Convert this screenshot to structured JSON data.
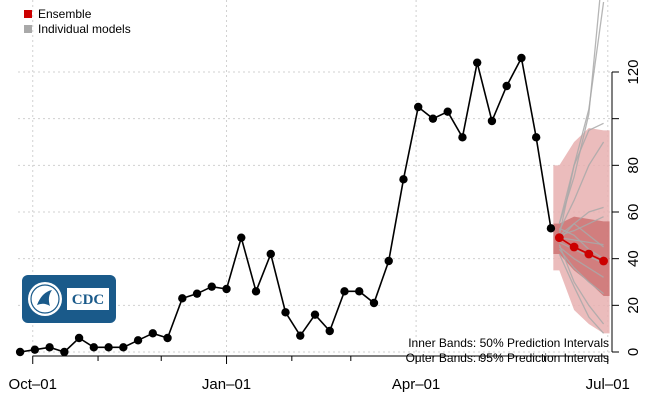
{
  "chart_data": {
    "type": "line",
    "title": "",
    "xlabel": "",
    "ylabel": "",
    "ylim": [
      0,
      135
    ],
    "xlim": [
      "2021-09-24",
      "2022-07-03"
    ],
    "x_ticks": [
      {
        "date": "2021-10-01",
        "label": "Oct–01"
      },
      {
        "date": "2022-01-01",
        "label": "Jan–01"
      },
      {
        "date": "2022-04-01",
        "label": "Apr–01"
      },
      {
        "date": "2022-07-01",
        "label": "Jul–01"
      }
    ],
    "y_ticks": [
      0,
      20,
      40,
      60,
      80,
      120
    ],
    "grid": true,
    "legend_position": "top-left",
    "legend": [
      {
        "label": "Ensemble",
        "color": "#cc0000"
      },
      {
        "label": "Individual models",
        "color": "#a9a9a9"
      }
    ],
    "series": [
      {
        "name": "",
        "color": "#000000",
        "points": [
          {
            "x": "2021-09-25",
            "y": 0
          },
          {
            "x": "2021-10-02",
            "y": 1
          },
          {
            "x": "2021-10-09",
            "y": 2
          },
          {
            "x": "2021-10-16",
            "y": 0
          },
          {
            "x": "2021-10-23",
            "y": 6
          },
          {
            "x": "2021-10-30",
            "y": 2
          },
          {
            "x": "2021-11-06",
            "y": 2
          },
          {
            "x": "2021-11-13",
            "y": 2
          },
          {
            "x": "2021-11-20",
            "y": 5
          },
          {
            "x": "2021-11-27",
            "y": 8
          },
          {
            "x": "2021-12-04",
            "y": 6
          },
          {
            "x": "2021-12-11",
            "y": 23
          },
          {
            "x": "2021-12-18",
            "y": 25
          },
          {
            "x": "2021-12-25",
            "y": 28
          },
          {
            "x": "2022-01-01",
            "y": 27
          },
          {
            "x": "2022-01-08",
            "y": 49
          },
          {
            "x": "2022-01-15",
            "y": 26
          },
          {
            "x": "2022-01-22",
            "y": 42
          },
          {
            "x": "2022-01-29",
            "y": 17
          },
          {
            "x": "2022-02-05",
            "y": 7
          },
          {
            "x": "2022-02-12",
            "y": 16
          },
          {
            "x": "2022-02-19",
            "y": 9
          },
          {
            "x": "2022-02-26",
            "y": 26
          },
          {
            "x": "2022-03-05",
            "y": 26
          },
          {
            "x": "2022-03-12",
            "y": 21
          },
          {
            "x": "2022-03-19",
            "y": 39
          },
          {
            "x": "2022-03-26",
            "y": 74
          },
          {
            "x": "2022-04-02",
            "y": 105
          },
          {
            "x": "2022-04-09",
            "y": 100
          },
          {
            "x": "2022-04-16",
            "y": 103
          },
          {
            "x": "2022-04-23",
            "y": 92
          },
          {
            "x": "2022-04-30",
            "y": 124
          },
          {
            "x": "2022-05-07",
            "y": 99
          },
          {
            "x": "2022-05-14",
            "y": 114
          },
          {
            "x": "2022-05-21",
            "y": 126
          },
          {
            "x": "2022-05-28",
            "y": 92
          },
          {
            "x": "2022-06-04",
            "y": 53
          }
        ]
      },
      {
        "name": "Ensemble",
        "color": "#cc0000",
        "points": [
          {
            "x": "2022-06-08",
            "y": 49
          },
          {
            "x": "2022-06-15",
            "y": 45
          },
          {
            "x": "2022-06-22",
            "y": 42
          },
          {
            "x": "2022-06-29",
            "y": 39
          }
        ]
      }
    ],
    "ensemble_intervals": {
      "x": [
        "2022-06-08",
        "2022-06-15",
        "2022-06-22",
        "2022-06-29"
      ],
      "lower_95": [
        35,
        18,
        12,
        8
      ],
      "upper_95": [
        80,
        90,
        96,
        95
      ],
      "lower_50": [
        42,
        35,
        30,
        24
      ],
      "upper_50": [
        55,
        58,
        57,
        56
      ]
    },
    "individual_models": [
      {
        "x": [
          "2022-06-08",
          "2022-06-15",
          "2022-06-22",
          "2022-06-29"
        ],
        "y": [
          55,
          75,
          102,
          168
        ]
      },
      {
        "x": [
          "2022-06-08",
          "2022-06-15",
          "2022-06-22",
          "2022-06-29"
        ],
        "y": [
          55,
          80,
          104,
          150
        ]
      },
      {
        "x": [
          "2022-06-08",
          "2022-06-15",
          "2022-06-22",
          "2022-06-29"
        ],
        "y": [
          50,
          80,
          95,
          98
        ]
      },
      {
        "x": [
          "2022-06-08",
          "2022-06-15",
          "2022-06-22",
          "2022-06-29"
        ],
        "y": [
          52,
          65,
          80,
          90
        ]
      },
      {
        "x": [
          "2022-06-08",
          "2022-06-15",
          "2022-06-22",
          "2022-06-29"
        ],
        "y": [
          48,
          55,
          60,
          62
        ]
      },
      {
        "x": [
          "2022-06-08",
          "2022-06-15",
          "2022-06-22",
          "2022-06-29"
        ],
        "y": [
          50,
          52,
          55,
          58
        ]
      },
      {
        "x": [
          "2022-06-08",
          "2022-06-15",
          "2022-06-22",
          "2022-06-29"
        ],
        "y": [
          49,
          48,
          47,
          46
        ]
      },
      {
        "x": [
          "2022-06-08",
          "2022-06-15",
          "2022-06-22",
          "2022-06-29"
        ],
        "y": [
          47,
          44,
          41,
          38
        ]
      },
      {
        "x": [
          "2022-06-08",
          "2022-06-15",
          "2022-06-22",
          "2022-06-29"
        ],
        "y": [
          45,
          40,
          36,
          32
        ]
      },
      {
        "x": [
          "2022-06-08",
          "2022-06-15",
          "2022-06-22",
          "2022-06-29"
        ],
        "y": [
          44,
          36,
          30,
          25
        ]
      },
      {
        "x": [
          "2022-06-08",
          "2022-06-15",
          "2022-06-22",
          "2022-06-29"
        ],
        "y": [
          46,
          30,
          20,
          12
        ]
      },
      {
        "x": [
          "2022-06-08",
          "2022-06-15",
          "2022-06-22",
          "2022-06-29"
        ],
        "y": [
          42,
          28,
          15,
          8
        ]
      },
      {
        "x": [
          "2022-06-08",
          "2022-06-15",
          "2022-06-22",
          "2022-06-29"
        ],
        "y": [
          50,
          55,
          50,
          45
        ]
      },
      {
        "x": [
          "2022-06-08",
          "2022-06-15",
          "2022-06-22",
          "2022-06-29"
        ],
        "y": [
          53,
          50,
          44,
          40
        ]
      }
    ],
    "annotations": [
      "Inner Bands: 50% Prediction Intervals",
      "Outer Bands: 95% Prediction Intervals"
    ]
  },
  "logo": {
    "text": "CDC",
    "alt": "HHS and CDC logo"
  },
  "colors": {
    "observed": "#000000",
    "ensemble": "#cc0000",
    "individual": "#a9a9a9",
    "band_outer": "#e8b0b0",
    "band_inner": "#c86a6a",
    "grid": "#d0d0d0",
    "logo_bg": "#1a5a8a"
  }
}
